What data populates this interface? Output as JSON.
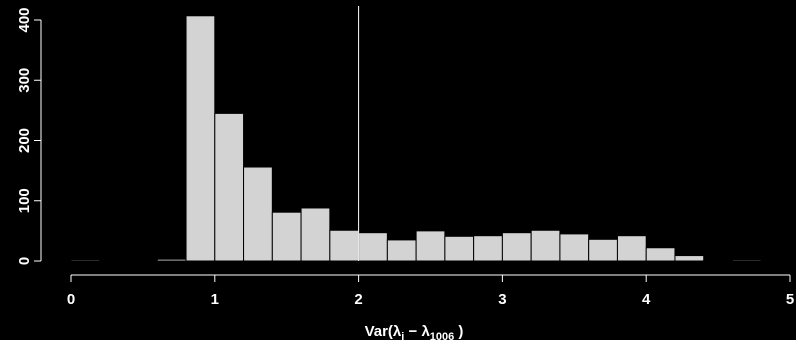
{
  "chart_data": {
    "type": "bar",
    "title": "",
    "xlabel": "Var(λᵢ − λ₁₀₀₆)",
    "xlabel_parts": {
      "prefix": "Var(",
      "lambda1": "λ",
      "sub1": "i",
      "minus": " − ",
      "lambda2": "λ",
      "sub2": "1006",
      "suffix": " )"
    },
    "ylabel": "",
    "xlim": [
      0,
      5
    ],
    "ylim": [
      0,
      400
    ],
    "bin_width": 0.2,
    "bin_starts": [
      0.0,
      0.2,
      0.4,
      0.6,
      0.8,
      1.0,
      1.2,
      1.4,
      1.6,
      1.8,
      2.0,
      2.2,
      2.4,
      2.6,
      2.8,
      3.0,
      3.2,
      3.4,
      3.6,
      3.8,
      4.0,
      4.2,
      4.4,
      4.6,
      4.8
    ],
    "values": [
      2,
      1,
      1,
      3,
      407,
      245,
      156,
      81,
      88,
      51,
      47,
      35,
      50,
      41,
      42,
      47,
      51,
      45,
      36,
      42,
      22,
      9,
      1,
      2,
      1
    ],
    "x_ticks": [
      0,
      1,
      2,
      3,
      4,
      5
    ],
    "x_tick_labels": [
      "0",
      "1",
      "2",
      "3",
      "4",
      "5"
    ],
    "y_ticks": [
      0,
      100,
      200,
      300,
      400
    ],
    "y_tick_labels": [
      "0",
      "100",
      "200",
      "300",
      "400"
    ],
    "reference_line_x": 2,
    "colors": {
      "bar_fill": "#d3d3d3",
      "bar_border": "#000000",
      "background": "#000000",
      "axis": "#ffffff"
    },
    "grid": false,
    "legend": "none"
  }
}
